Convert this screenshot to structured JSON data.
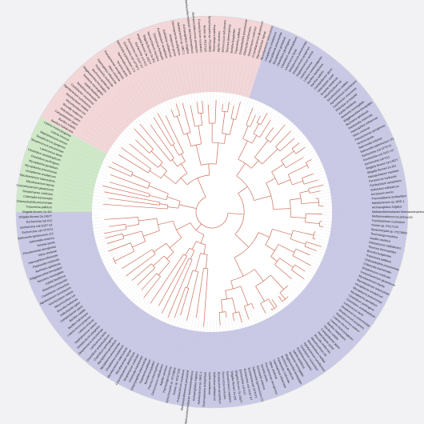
{
  "tree": {
    "type": "circular-phylogeny",
    "branch_color": "#cf6f5a",
    "guide_color": "#bdbdc6",
    "clades": [
      {
        "id": "clade-purple-right",
        "color": "#c9c9e6"
      },
      {
        "id": "clade-pink-top",
        "color": "#f2d6d8"
      },
      {
        "id": "clade-green-left",
        "color": "#cfe9c8"
      },
      {
        "id": "clade-purple-left",
        "color": "#c9c9e6"
      }
    ],
    "leaves": [
      "Shigella flexneri 2a 301",
      "Shigella flexneri 2a 2457T",
      "Escherichia coli K12",
      "Escherichia coli O157 H7",
      "Escherichia coli CFT073",
      "Salmonella typhimurium LT2",
      "Salmonella enterica",
      "Yersinia pestis",
      "Pseudomonas aeruginosa",
      "Vibrio cholerae",
      "Haemophilus influenzae",
      "Pasteurella multocida",
      "Buchnera aphidicola",
      "Wigglesworthia brevipalpis",
      "Neisseria meningitidis",
      "Xylella fastidiosa",
      "Rickettsia prowazekii",
      "Caulobacter crescentus",
      "Agrobacterium tumefaciens",
      "Sinorhizobium meliloti",
      "Mesorhizobium loti",
      "Brucella melitensis",
      "Helicobacter pylori",
      "Campylobacter jejuni",
      "Bacillus subtilis",
      "Bacillus halodurans",
      "Listeria monocytogenes",
      "Listeria innocua",
      "Staphylococcus aureus",
      "Streptococcus pyogenes",
      "Streptococcus pneumoniae",
      "Lactococcus lactis",
      "Clostridium acetobutylicum",
      "Clostridium perfringens",
      "Mycoplasma genitalium",
      "Mycoplasma pneumoniae",
      "Ureaplasma urealyticum",
      "Mycobacterium tuberculosis",
      "Mycobacterium leprae",
      "Corynebacterium glutamicum",
      "Streptomyces coelicolor",
      "Chlamydia trachomatis",
      "Chlamydophila pneumoniae",
      "Treponema pallidum",
      "Borrelia burgdorferi",
      "Thermus thermophilus",
      "Deinococcus radiodurans",
      "Aquifex aeolicus",
      "Thermotoga maritima",
      "Synechocystis sp. PCC6803",
      "Nostoc sp. PCC7120",
      "Fusobacterium nucleatum",
      "Methanocaldococcus jannaschii",
      "Methanothermobacter thermautotrophicus",
      "Archaeoglobus fulgidus",
      "Halobacterium sp. NRC-1",
      "Thermoplasma acidophilum",
      "Aeropyrum pernix",
      "Sulfolobus solfataricus",
      "Pyrobaculum aerophilum",
      "Pyrococcus horikoshii",
      "Nanoarchaeum equitans"
    ]
  }
}
